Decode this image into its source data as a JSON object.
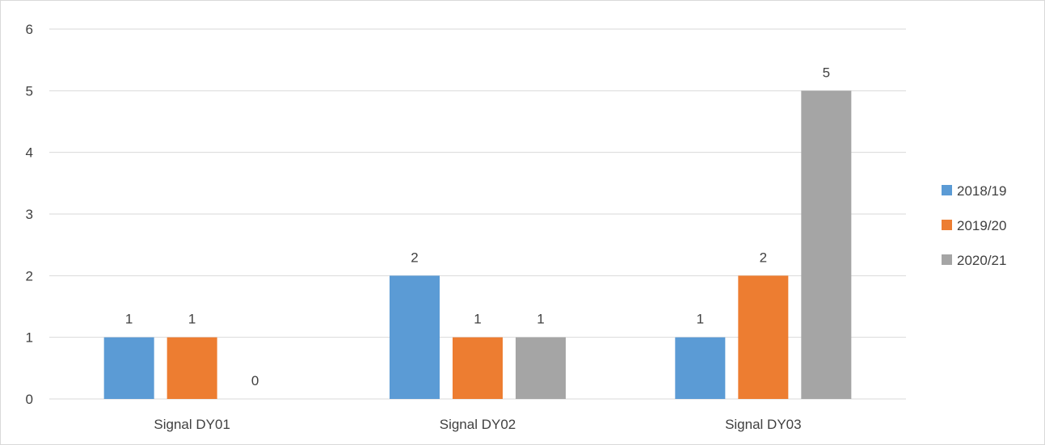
{
  "chart_data": {
    "type": "bar",
    "title": "",
    "xlabel": "",
    "ylabel": "",
    "categories": [
      "Signal DY01",
      "Signal DY02",
      "Signal DY03"
    ],
    "series": [
      {
        "name": "2018/19",
        "color": "#5b9bd5",
        "values": [
          1,
          2,
          1
        ]
      },
      {
        "name": "2019/20",
        "color": "#ed7d31",
        "values": [
          1,
          1,
          2
        ]
      },
      {
        "name": "2020/21",
        "color": "#a5a5a5",
        "values": [
          0,
          1,
          5
        ]
      }
    ],
    "ylim": [
      0,
      6
    ],
    "yticks": [
      "0",
      "1",
      "2",
      "3",
      "4",
      "5",
      "6"
    ],
    "grid": true,
    "legend_position": "right",
    "data_labels": true,
    "gridline_color": "#d9d9d9",
    "label_color": "#404040"
  }
}
